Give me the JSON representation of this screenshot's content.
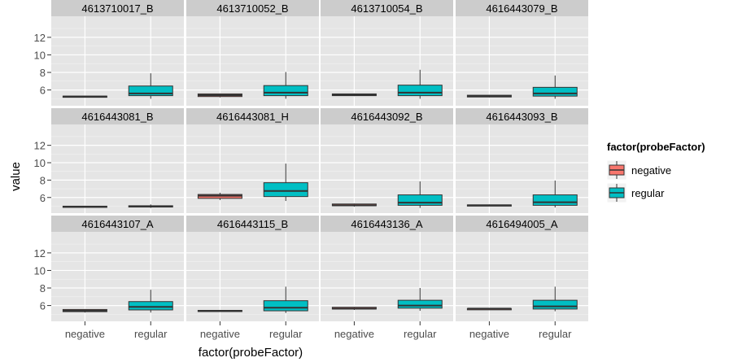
{
  "chart_data": {
    "type": "boxplot",
    "xlabel": "factor(probeFactor)",
    "ylabel": "value",
    "categories": [
      "negative",
      "regular"
    ],
    "y_ticks": [
      6,
      8,
      10,
      12
    ],
    "ylim": [
      4.2,
      14.4
    ],
    "grid": true,
    "legend": {
      "title": "factor(probeFactor)",
      "position": "right",
      "entries": [
        {
          "label": "negative",
          "color": "#F8766D"
        },
        {
          "label": "regular",
          "color": "#00BFC4"
        }
      ]
    },
    "facets": [
      {
        "label": "4613710017_B",
        "boxes": [
          {
            "category": "negative",
            "lower": 5.15,
            "q1": 5.2,
            "median": 5.25,
            "q3": 5.3,
            "upper": 5.35
          },
          {
            "category": "regular",
            "lower": 5.0,
            "q1": 5.35,
            "median": 5.6,
            "q3": 6.45,
            "upper": 7.9
          }
        ]
      },
      {
        "label": "4613710052_B",
        "boxes": [
          {
            "category": "negative",
            "lower": 5.15,
            "q1": 5.25,
            "median": 5.4,
            "q3": 5.55,
            "upper": 5.6
          },
          {
            "category": "regular",
            "lower": 5.0,
            "q1": 5.35,
            "median": 5.7,
            "q3": 6.5,
            "upper": 8.05
          }
        ]
      },
      {
        "label": "4613710054_B",
        "boxes": [
          {
            "category": "negative",
            "lower": 5.3,
            "q1": 5.35,
            "median": 5.45,
            "q3": 5.55,
            "upper": 5.6
          },
          {
            "category": "regular",
            "lower": 5.0,
            "q1": 5.35,
            "median": 5.7,
            "q3": 6.55,
            "upper": 8.3
          }
        ]
      },
      {
        "label": "4616443079_B",
        "boxes": [
          {
            "category": "negative",
            "lower": 5.15,
            "q1": 5.2,
            "median": 5.3,
            "q3": 5.4,
            "upper": 5.45
          },
          {
            "category": "regular",
            "lower": 5.0,
            "q1": 5.3,
            "median": 5.6,
            "q3": 6.3,
            "upper": 7.65
          }
        ]
      },
      {
        "label": "4616443081_B",
        "boxes": [
          {
            "category": "negative",
            "lower": 4.85,
            "q1": 4.9,
            "median": 4.95,
            "q3": 5.0,
            "upper": 5.05
          },
          {
            "category": "regular",
            "lower": 4.8,
            "q1": 4.9,
            "median": 5.0,
            "q3": 5.05,
            "upper": 5.2
          }
        ]
      },
      {
        "label": "4616443081_H",
        "boxes": [
          {
            "category": "negative",
            "lower": 5.7,
            "q1": 5.9,
            "median": 6.2,
            "q3": 6.35,
            "upper": 6.55
          },
          {
            "category": "regular",
            "lower": 5.6,
            "q1": 6.1,
            "median": 6.75,
            "q3": 7.7,
            "upper": 9.9
          }
        ]
      },
      {
        "label": "4616443092_B",
        "boxes": [
          {
            "category": "negative",
            "lower": 4.95,
            "q1": 5.05,
            "median": 5.1,
            "q3": 5.25,
            "upper": 5.3
          },
          {
            "category": "regular",
            "lower": 4.8,
            "q1": 5.1,
            "median": 5.4,
            "q3": 6.3,
            "upper": 7.85
          }
        ]
      },
      {
        "label": "4616443093_B",
        "boxes": [
          {
            "category": "negative",
            "lower": 5.0,
            "q1": 5.05,
            "median": 5.1,
            "q3": 5.15,
            "upper": 5.2
          },
          {
            "category": "regular",
            "lower": 4.85,
            "q1": 5.1,
            "median": 5.45,
            "q3": 6.3,
            "upper": 7.95
          }
        ]
      },
      {
        "label": "4616443107_A",
        "boxes": [
          {
            "category": "negative",
            "lower": 5.2,
            "q1": 5.3,
            "median": 5.4,
            "q3": 5.55,
            "upper": 5.6
          },
          {
            "category": "regular",
            "lower": 5.2,
            "q1": 5.5,
            "median": 5.85,
            "q3": 6.45,
            "upper": 7.8
          }
        ]
      },
      {
        "label": "4616443115_B",
        "boxes": [
          {
            "category": "negative",
            "lower": 5.35,
            "q1": 5.35,
            "median": 5.4,
            "q3": 5.45,
            "upper": 5.5
          },
          {
            "category": "regular",
            "lower": 5.15,
            "q1": 5.4,
            "median": 5.75,
            "q3": 6.55,
            "upper": 8.15
          }
        ]
      },
      {
        "label": "4616443136_A",
        "boxes": [
          {
            "category": "negative",
            "lower": 5.5,
            "q1": 5.6,
            "median": 5.65,
            "q3": 5.8,
            "upper": 5.85
          },
          {
            "category": "regular",
            "lower": 5.4,
            "q1": 5.7,
            "median": 6.0,
            "q3": 6.6,
            "upper": 8.0
          }
        ]
      },
      {
        "label": "4616494005_A",
        "boxes": [
          {
            "category": "negative",
            "lower": 5.6,
            "q1": 5.6,
            "median": 5.65,
            "q3": 5.65,
            "upper": 5.7
          },
          {
            "category": "regular",
            "lower": 5.35,
            "q1": 5.6,
            "median": 5.9,
            "q3": 6.6,
            "upper": 8.15
          }
        ]
      }
    ]
  }
}
